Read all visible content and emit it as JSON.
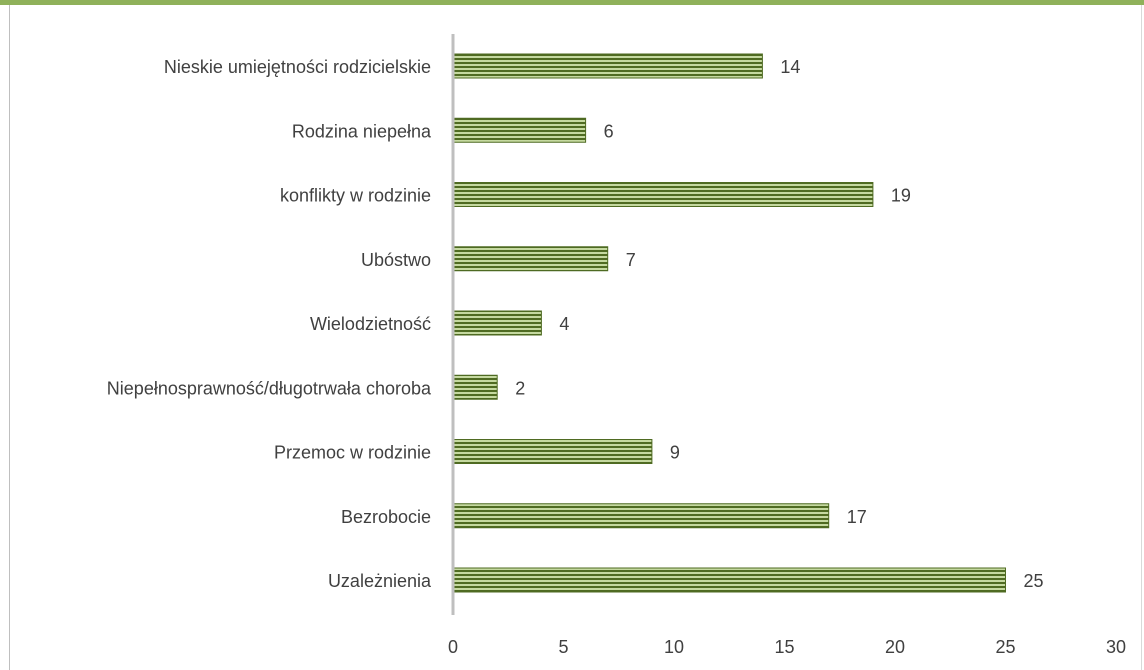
{
  "chart_data": {
    "type": "bar",
    "orientation": "horizontal",
    "categories": [
      "Nieskie umiejętności rodzicielskie",
      "Rodzina niepełna",
      "konflikty w rodzinie",
      "Ubóstwo",
      "Wielodzietność",
      "Niepełnosprawność/długotrwała choroba",
      "Przemoc w rodzinie",
      "Bezrobocie",
      "Uzależnienia"
    ],
    "values": [
      14,
      6,
      19,
      7,
      4,
      2,
      9,
      17,
      25
    ],
    "data_labels": [
      "14",
      "6",
      "19",
      "7",
      "4",
      "2",
      "9",
      "17",
      "25"
    ],
    "xlim": [
      0,
      30
    ],
    "x_ticks": [
      "0",
      "5",
      "10",
      "15",
      "20",
      "25",
      "30"
    ],
    "title": "",
    "xlabel": "",
    "ylabel": "",
    "grid": false,
    "legend": "none"
  },
  "colors": {
    "bar_light": "#c5d9a0",
    "bar_dark": "#4f6b22",
    "axis": "#bfbfbf",
    "text": "#404040",
    "top_band": "#8fb15a"
  }
}
